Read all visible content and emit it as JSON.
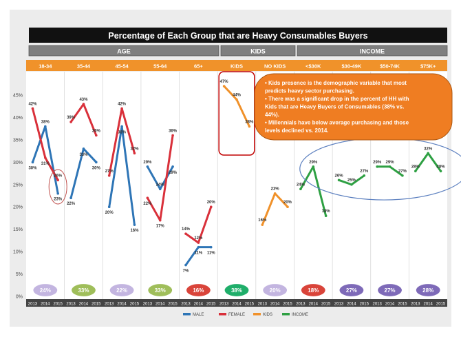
{
  "chart_data": {
    "type": "line",
    "title": "Percentage of Each Group that are Heavy Consumables Buyers",
    "group_headers": [
      "AGE",
      "KIDS",
      "INCOME"
    ],
    "panel_labels": [
      "18-34",
      "35-44",
      "45-54",
      "55-64",
      "65+",
      "KIDS",
      "NO KIDS",
      "<$30K",
      "$30-49K",
      "$50-74K",
      "$75K+"
    ],
    "x": [
      "2013",
      "2014",
      "2015"
    ],
    "y_ticks": [
      "0%",
      "5%",
      "10%",
      "15%",
      "20%",
      "25%",
      "30%",
      "35%",
      "40%",
      "45%"
    ],
    "ylim": [
      0,
      47
    ],
    "legend": [
      "MALE",
      "FEMALE",
      "KIDS",
      "INCOME"
    ],
    "colors": {
      "MALE": "#2e75b6",
      "FEMALE": "#d9303a",
      "KIDS": "#f0912a",
      "INCOME": "#2ea043"
    },
    "panels": [
      {
        "label": "18-34",
        "badge": "24%",
        "series": [
          {
            "name": "MALE",
            "values": [
              30,
              38,
              23
            ]
          },
          {
            "name": "FEMALE",
            "values": [
              42,
              31,
              26
            ]
          }
        ]
      },
      {
        "label": "35-44",
        "badge": "33%",
        "series": [
          {
            "name": "MALE",
            "values": [
              22,
              33,
              30
            ]
          },
          {
            "name": "FEMALE",
            "values": [
              39,
              43,
              36
            ]
          }
        ]
      },
      {
        "label": "45-54",
        "badge": "22%",
        "series": [
          {
            "name": "MALE",
            "values": [
              20,
              38,
              16
            ]
          },
          {
            "name": "FEMALE",
            "values": [
              27,
              42,
              32
            ]
          }
        ]
      },
      {
        "label": "55-64",
        "badge": "33%",
        "series": [
          {
            "name": "MALE",
            "values": [
              29,
              24,
              29
            ]
          },
          {
            "name": "FEMALE",
            "values": [
              22,
              17,
              36
            ]
          }
        ]
      },
      {
        "label": "65+",
        "badge": "16%",
        "series": [
          {
            "name": "MALE",
            "values": [
              7,
              11,
              11
            ]
          },
          {
            "name": "FEMALE",
            "values": [
              14,
              12,
              20
            ]
          }
        ]
      },
      {
        "label": "KIDS",
        "badge": "38%",
        "series": [
          {
            "name": "KIDS",
            "values": [
              47,
              44,
              38
            ]
          }
        ]
      },
      {
        "label": "NO KIDS",
        "badge": "20%",
        "series": [
          {
            "name": "KIDS",
            "values": [
              16,
              23,
              20
            ]
          }
        ]
      },
      {
        "label": "<$30K",
        "badge": "18%",
        "series": [
          {
            "name": "INCOME",
            "values": [
              24,
              29,
              18
            ]
          }
        ]
      },
      {
        "label": "$30-49K",
        "badge": "27%",
        "series": [
          {
            "name": "INCOME",
            "values": [
              26,
              25,
              27
            ]
          }
        ]
      },
      {
        "label": "$50-74K",
        "badge": "27%",
        "series": [
          {
            "name": "INCOME",
            "values": [
              29,
              29,
              27
            ]
          }
        ]
      },
      {
        "label": "$75K+",
        "badge": "28%",
        "series": [
          {
            "name": "INCOME",
            "values": [
              28,
              32,
              28
            ]
          }
        ]
      }
    ],
    "badge_colors": [
      "#c3b5e0",
      "#9fbe5a",
      "#c3b5e0",
      "#9fbe5a",
      "#d9443a",
      "#1fae6a",
      "#c3b5e0",
      "#d9443a",
      "#7e6ab8",
      "#7e6ab8",
      "#7e6ab8"
    ],
    "callout": {
      "lines": [
        "• Kids presence is the demographic variable that most",
        "   predicts heavy sector purchasing.",
        "• There was a significant drop in the percent of HH with",
        "   Kids that are Heavy Buyers of Consumables (38% vs.",
        "   44%).",
        "• Millennials have below average purchasing and those",
        "   levels declined vs. 2014."
      ],
      "color": "#ef7d22"
    }
  }
}
